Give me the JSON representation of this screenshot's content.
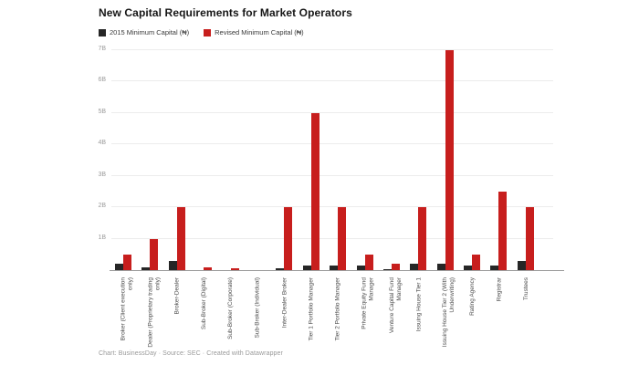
{
  "header": {
    "title": "New Capital Requirements for Market Operators"
  },
  "footer": {
    "credit": "Chart: BusinessDay · Source: SEC · Created with Datawrapper"
  },
  "chart_data": {
    "type": "bar",
    "title": "New Capital Requirements for Market Operators",
    "categories": [
      "Broker (Client execution only)",
      "Dealer (Proprietary trading only)",
      "Broker-Dealer",
      "Sub-Broker (Digital)",
      "Sub-Broker (Corporate)",
      "Sub-Broker (Individual)",
      "Inter-Dealer Broker",
      "Tier 1 Portfolio Manager",
      "Tier 2 Portfolio Manager",
      "Private Equity Fund Manager",
      "Venture Capital Fund Manager",
      "Issuing House Tier 1",
      "Issuing House Tier 2 (With Underwriting)",
      "Rating Agency",
      "Registrar",
      "Trustees"
    ],
    "category_label_lines": [
      "Broker (Client execution\nonly)",
      "Dealer (Proprietary trading\nonly)",
      "Broker-Dealer",
      "Sub-Broker (Digital)",
      "Sub-Broker (Corporate)",
      "Sub-Broker (Individual)",
      "Inter-Dealer Broker",
      "Tier 1 Portfolio Manager",
      "Tier 2 Portfolio Manager",
      "Private Equity Fund\nManager",
      "Venture Capital Fund\nManager",
      "Issuing House Tier 1",
      "Issuing House Tier 2 (With\nUnderwriting)",
      "Rating Agency",
      "Registrar",
      "Trustees"
    ],
    "series": [
      {
        "name": "2015 Minimum Capital (₦)",
        "color": "#262626",
        "values": [
          0.2,
          0.1,
          0.3,
          0.005,
          0.005,
          0.005,
          0.05,
          0.15,
          0.15,
          0.15,
          0.02,
          0.2,
          0.2,
          0.15,
          0.15,
          0.3
        ]
      },
      {
        "name": "Revised Minimum Capital (₦)",
        "color": "#c71e1d",
        "values": [
          0.5,
          1,
          2,
          0.1,
          0.05,
          0.01,
          2,
          5,
          2,
          0.5,
          0.2,
          2,
          7,
          0.5,
          2.5,
          2
        ]
      }
    ],
    "y_ticks": [
      "1B",
      "2B",
      "3B",
      "4B",
      "5B",
      "6B",
      "7B"
    ],
    "y_tick_suffix": "B",
    "ylim": [
      0,
      7.25
    ],
    "xlabel": "",
    "ylabel": "",
    "grid": true,
    "legend_position": "top-left",
    "values_unit": "billions of naira (₦)"
  }
}
